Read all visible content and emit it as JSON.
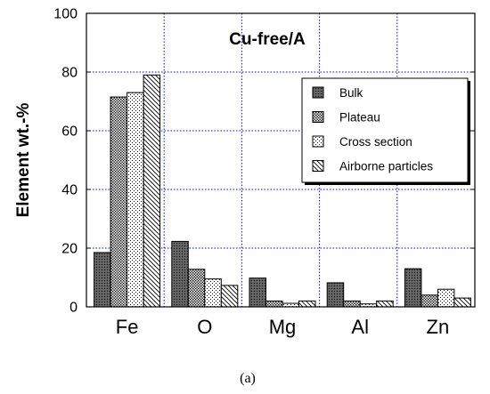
{
  "chart_data": {
    "type": "bar",
    "title": "Cu-free/A",
    "ylabel": "Element wt.-%",
    "xlabel": "",
    "ylim": [
      0,
      100
    ],
    "yticks": [
      0,
      20,
      40,
      60,
      80,
      100
    ],
    "categories": [
      "Fe",
      "O",
      "Mg",
      "Al",
      "Zn"
    ],
    "grid": true,
    "legend_position": "right",
    "series": [
      {
        "name": "Bulk",
        "pattern": "dark-dots",
        "values": [
          18.5,
          22.3,
          9.8,
          8.2,
          13
        ]
      },
      {
        "name": "Plateau",
        "pattern": "medium-dots",
        "values": [
          71.5,
          12.8,
          2,
          2,
          4
        ]
      },
      {
        "name": "Cross section",
        "pattern": "sparse-dots",
        "values": [
          73,
          9.5,
          1.2,
          1,
          6
        ]
      },
      {
        "name": "Airborne particles",
        "pattern": "diagonal-lines",
        "values": [
          79,
          7.3,
          2,
          2,
          3
        ]
      }
    ],
    "caption": "(a)"
  },
  "colors": {
    "grid": "#0000ff",
    "axis": "#000000",
    "bar_outline": "#000000"
  }
}
